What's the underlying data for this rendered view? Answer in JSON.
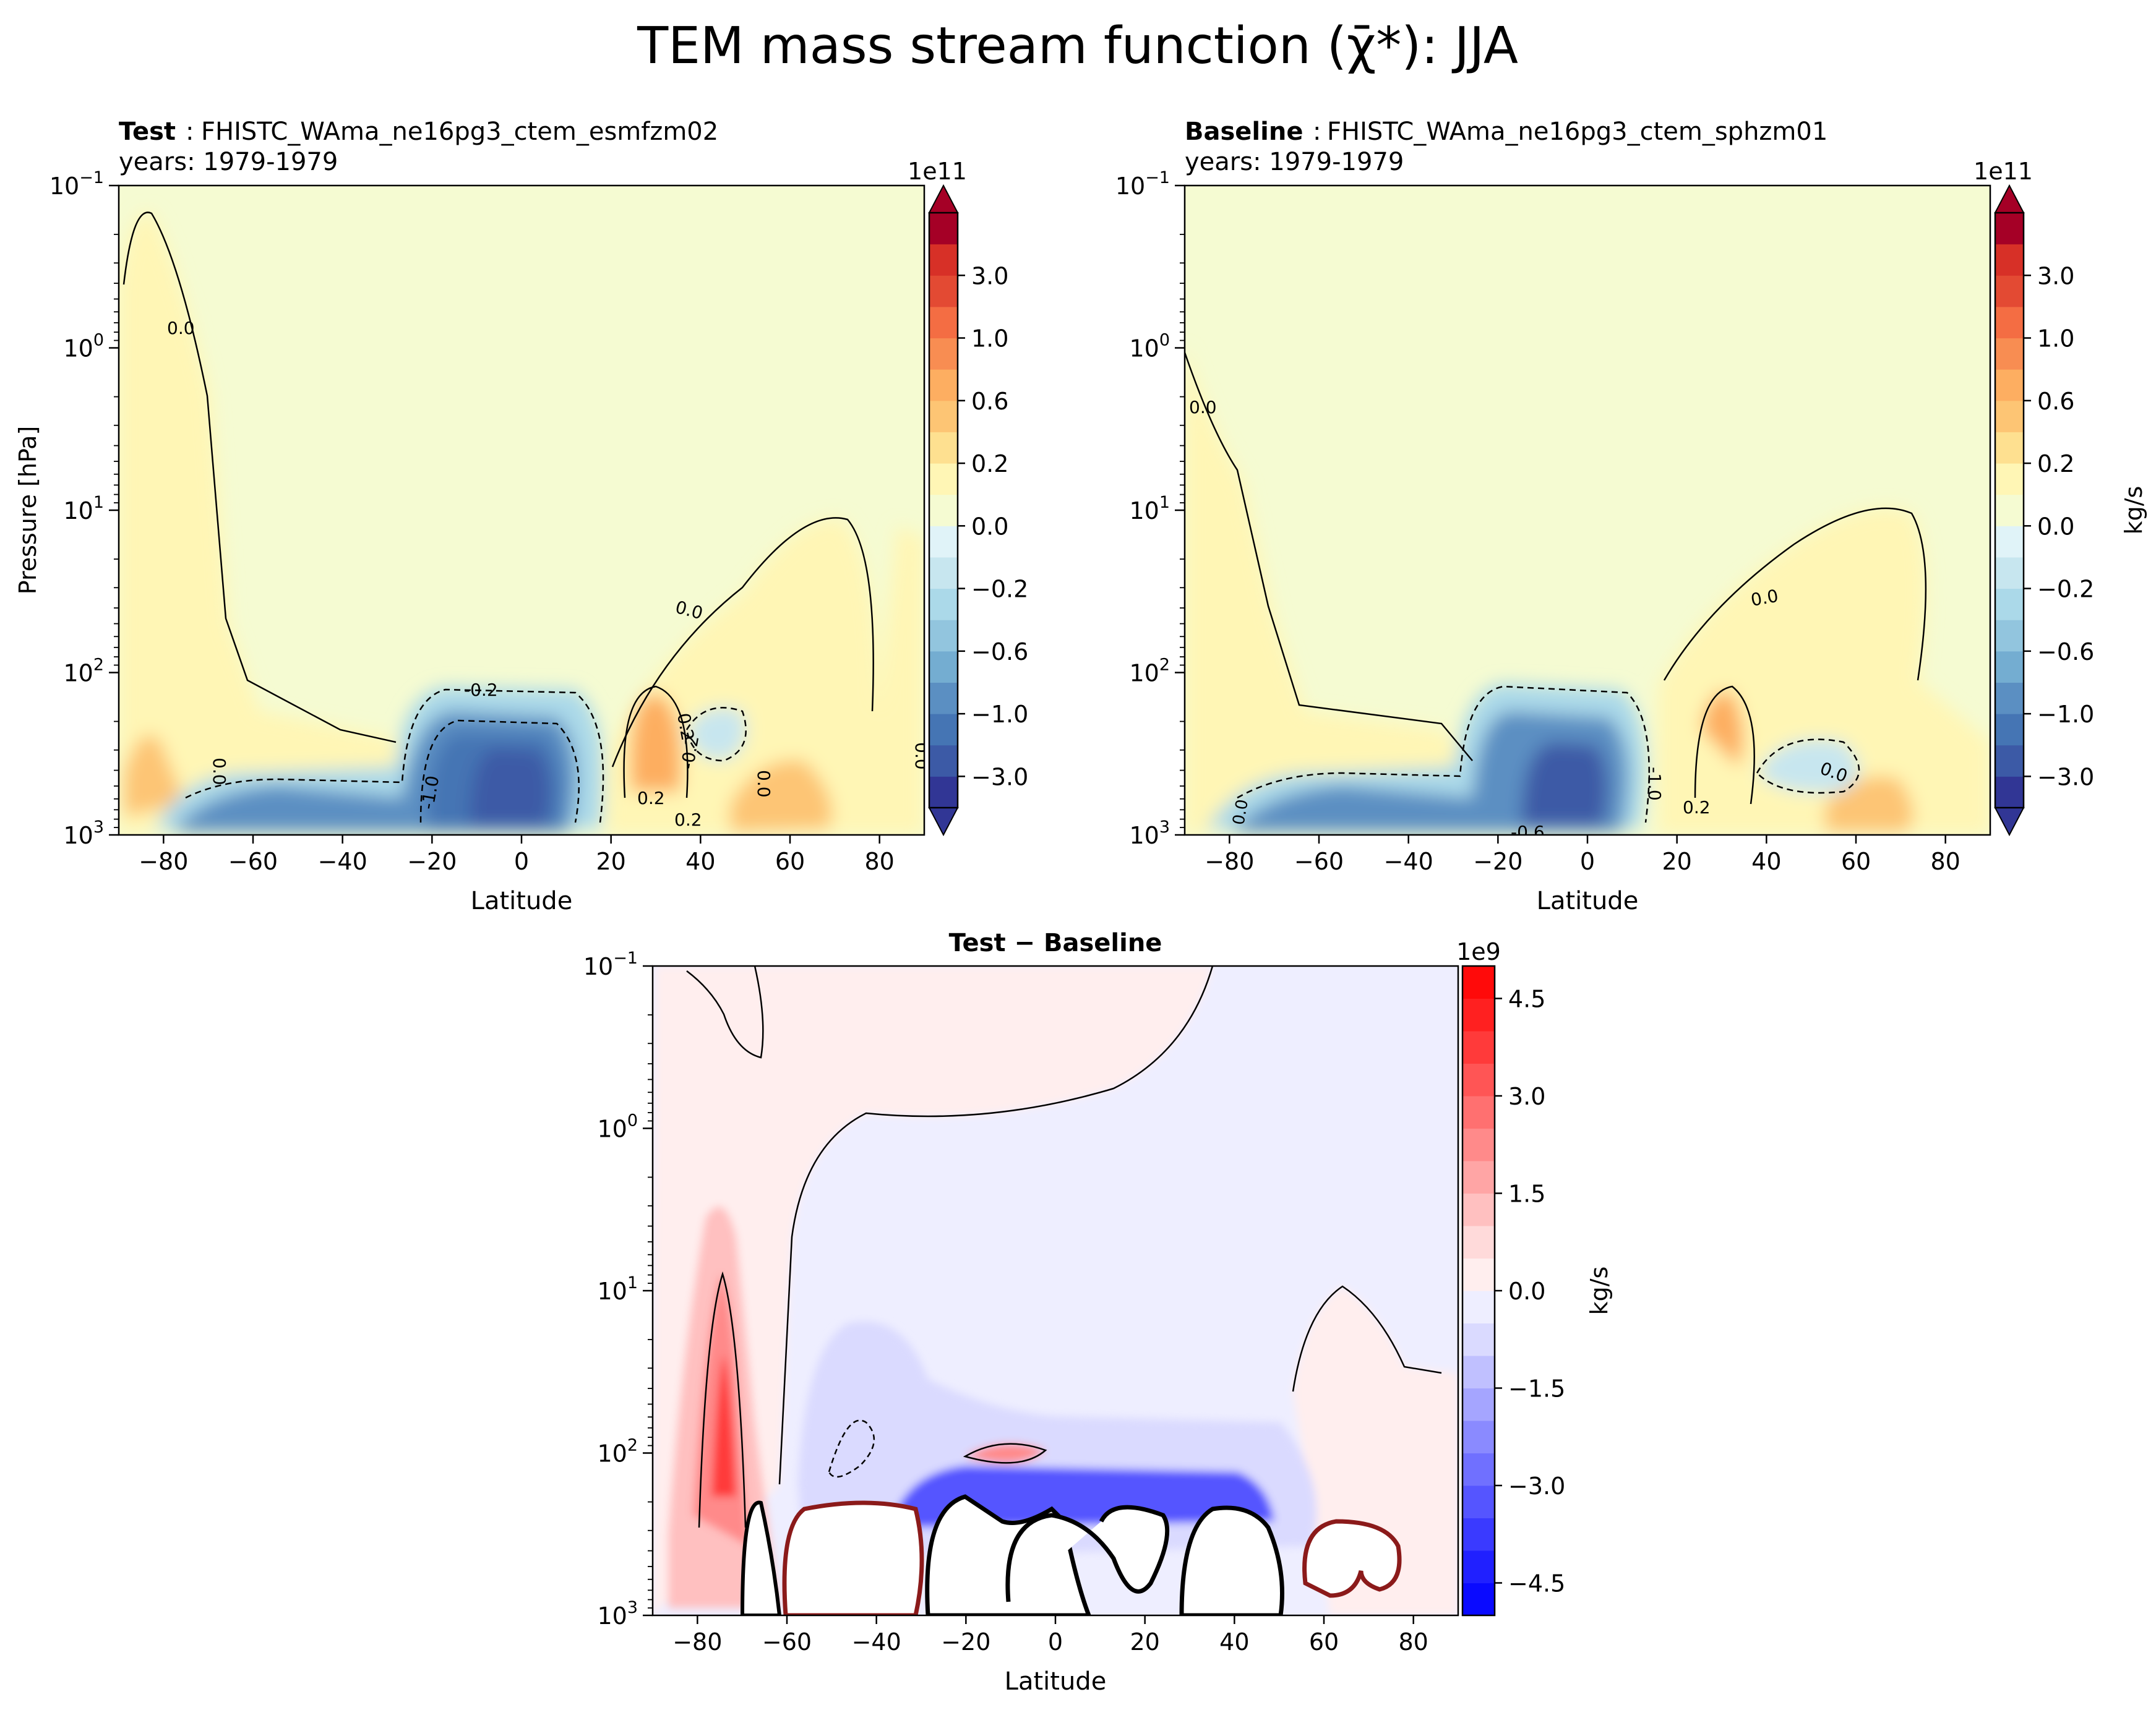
{
  "figure": {
    "title": "TEM mass stream function (χ̄*): JJA"
  },
  "chart_data": [
    {
      "type": "heatmap",
      "panel": "test",
      "title_bold": "Test",
      "title_case": "FHISTC_WAma_ne16pg3_ctem_esmfzm02",
      "years": "years: 1979-1979",
      "xlabel": "Latitude",
      "ylabel": "Pressure [hPa]",
      "xlim": [
        -90,
        90
      ],
      "ylim_hPa": [
        1000,
        0.1
      ],
      "yscale": "log",
      "x_ticks": [
        "−80",
        "−60",
        "−40",
        "−20",
        "0",
        "20",
        "40",
        "60",
        "80"
      ],
      "y_ticks": [
        {
          "base": "10",
          "exp": "−1"
        },
        {
          "base": "10",
          "exp": "0"
        },
        {
          "base": "10",
          "exp": "1"
        },
        {
          "base": "10",
          "exp": "2"
        },
        {
          "base": "10",
          "exp": "3"
        }
      ],
      "colorbar": {
        "scale_label": "1e11",
        "unit": "",
        "tick_labels": [
          "−3.0",
          "−1.0",
          "−0.6",
          "−0.2",
          "0.0",
          "0.2",
          "0.6",
          "1.0",
          "3.0"
        ],
        "colors": [
          "#313695",
          "#3c5aa6",
          "#4575b4",
          "#5b8fc2",
          "#74add1",
          "#92c5de",
          "#abd9e9",
          "#c7e6ef",
          "#e0f3f8",
          "#f5fbd2",
          "#fff6b5",
          "#fee090",
          "#fdc574",
          "#fdae61",
          "#f88d52",
          "#f46d43",
          "#e34a33",
          "#d73027",
          "#a50026"
        ],
        "over_color": "#a50026",
        "under_color": "#313695"
      },
      "contour_labels": [
        "0.0",
        "0.0",
        "-0.2",
        "0.0",
        "0.2",
        "-1.0",
        "0.0",
        "0.2",
        "0.0",
        "0.2",
        "-0.2"
      ]
    },
    {
      "type": "heatmap",
      "panel": "baseline",
      "title_bold": "Baseline",
      "title_case": "FHISTC_WAma_ne16pg3_ctem_sphzm01",
      "years": "years: 1979-1979",
      "xlabel": "Latitude",
      "xlim": [
        -90,
        90
      ],
      "ylim_hPa": [
        1000,
        0.1
      ],
      "yscale": "log",
      "x_ticks": [
        "−80",
        "−60",
        "−40",
        "−20",
        "0",
        "20",
        "40",
        "60",
        "80"
      ],
      "y_ticks": [
        {
          "base": "10",
          "exp": "−1"
        },
        {
          "base": "10",
          "exp": "0"
        },
        {
          "base": "10",
          "exp": "1"
        },
        {
          "base": "10",
          "exp": "2"
        },
        {
          "base": "10",
          "exp": "3"
        }
      ],
      "colorbar": {
        "scale_label": "1e11",
        "unit": "kg/s",
        "tick_labels": [
          "−3.0",
          "−1.0",
          "−0.6",
          "−0.2",
          "0.0",
          "0.2",
          "0.6",
          "1.0",
          "3.0"
        ],
        "colors": [
          "#313695",
          "#3c5aa6",
          "#4575b4",
          "#5b8fc2",
          "#74add1",
          "#92c5de",
          "#abd9e9",
          "#c7e6ef",
          "#e0f3f8",
          "#f5fbd2",
          "#fff6b5",
          "#fee090",
          "#fdc574",
          "#fdae61",
          "#f88d52",
          "#f46d43",
          "#e34a33",
          "#d73027",
          "#a50026"
        ],
        "over_color": "#a50026",
        "under_color": "#313695"
      },
      "contour_labels": [
        "0.0",
        "0.0",
        "-1.0",
        "-0.6",
        "0.2",
        "0.0",
        "0.0"
      ]
    },
    {
      "type": "heatmap",
      "panel": "diff",
      "title": "Test − Baseline",
      "xlabel": "Latitude",
      "xlim": [
        -90,
        90
      ],
      "ylim_hPa": [
        1000,
        0.1
      ],
      "yscale": "log",
      "x_ticks": [
        "−80",
        "−60",
        "−40",
        "−20",
        "0",
        "20",
        "40",
        "60",
        "80"
      ],
      "y_ticks": [
        {
          "base": "10",
          "exp": "−1"
        },
        {
          "base": "10",
          "exp": "0"
        },
        {
          "base": "10",
          "exp": "1"
        },
        {
          "base": "10",
          "exp": "2"
        },
        {
          "base": "10",
          "exp": "3"
        }
      ],
      "colorbar": {
        "scale_label": "1e9",
        "unit": "kg/s",
        "tick_labels": [
          "−4.5",
          "−3.0",
          "−1.5",
          "0.0",
          "1.5",
          "3.0",
          "4.5"
        ],
        "range": [
          -5,
          5
        ],
        "colors": [
          "#0a0aff",
          "#2020ff",
          "#3a3aff",
          "#5555ff",
          "#7070ff",
          "#8a8aff",
          "#a5a5ff",
          "#c0c0ff",
          "#dadaff",
          "#eeeeff",
          "#ffeeee",
          "#ffdada",
          "#ffc0c0",
          "#ffa5a5",
          "#ff8a8a",
          "#ff7070",
          "#ff5555",
          "#ff3a3a",
          "#ff2020",
          "#ff0a0a"
        ]
      }
    }
  ]
}
